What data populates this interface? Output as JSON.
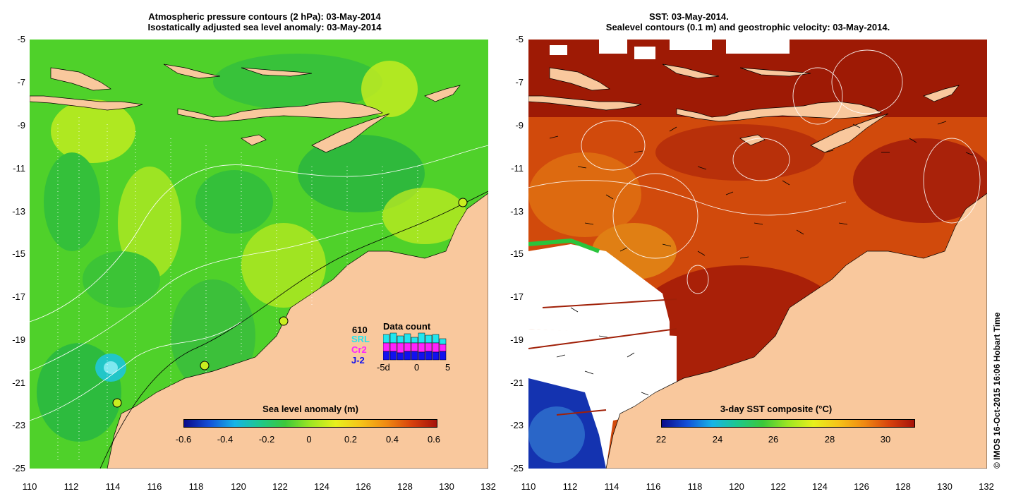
{
  "left_panel": {
    "title_line1": "Atmospheric pressure contours (2 hPa): 03-May-2014",
    "title_line2": "Isostatically adjusted sea level anomaly: 03-May-2014",
    "colorbar": {
      "title": "Sea level anomaly (m)",
      "ticks": [
        "-0.6",
        "-0.4",
        "-0.2",
        "0",
        "0.2",
        "0.4",
        "0.6"
      ],
      "range": [
        -0.6,
        0.6
      ]
    },
    "data_count": {
      "title": "Data count",
      "total": "610",
      "missions": [
        "SRL",
        "Cr2",
        "J-2"
      ],
      "axis_ticks": [
        "-5d",
        "0",
        "5"
      ],
      "mission_colors": [
        "#22e6ee",
        "#ff22ff",
        "#1111ee"
      ]
    }
  },
  "right_panel": {
    "title_line1": "SST: 03-May-2014.",
    "title_line2": "Sealevel contours (0.1 m) and geostrophic velocity: 03-May-2014.",
    "colorbar": {
      "title": "3-day SST composite (°C)",
      "ticks": [
        "22",
        "24",
        "26",
        "28",
        "30"
      ],
      "range": [
        22,
        31
      ]
    }
  },
  "axes": {
    "lon_ticks": [
      "110",
      "112",
      "114",
      "116",
      "118",
      "120",
      "122",
      "124",
      "126",
      "128",
      "130",
      "132"
    ],
    "lat_ticks": [
      "-5",
      "-7",
      "-9",
      "-11",
      "-13",
      "-15",
      "-17",
      "-19",
      "-21",
      "-23",
      "-25"
    ],
    "lon_range": [
      110,
      132
    ],
    "lat_range": [
      -25,
      -5
    ]
  },
  "credit": "© IMOS 16-Oct-2015 16:06 Hobart Time",
  "colors": {
    "land": "#f9c89d",
    "sla_ocean": "#4fd12a",
    "sst_ocean": "#d14a0c",
    "sst_warm": "#9e1a05"
  }
}
